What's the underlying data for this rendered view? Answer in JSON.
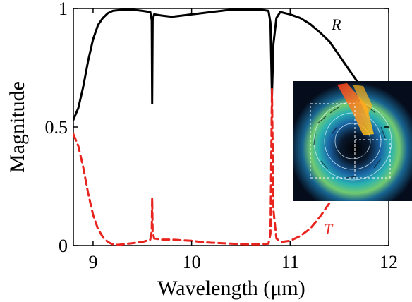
{
  "chart_data": {
    "type": "line",
    "title": "",
    "xlabel": "Wavelength (μm)",
    "ylabel": "Magnitude",
    "xlim": [
      8.8,
      12
    ],
    "ylim": [
      0,
      1
    ],
    "xticks": [
      9,
      10,
      11,
      12
    ],
    "xtick_labels": [
      "9",
      "10",
      "11",
      "12"
    ],
    "yticks": [
      0,
      0.5,
      1
    ],
    "ytick_labels": [
      "0",
      "0.5",
      "1"
    ],
    "grid": false,
    "legend": "none",
    "series": [
      {
        "name": "R",
        "color": "#000000",
        "style": "solid",
        "x": [
          8.8,
          8.85,
          8.9,
          8.95,
          9.0,
          9.05,
          9.1,
          9.15,
          9.2,
          9.3,
          9.4,
          9.5,
          9.58,
          9.595,
          9.6,
          9.605,
          9.62,
          9.7,
          9.8,
          9.9,
          10.0,
          10.1,
          10.2,
          10.3,
          10.4,
          10.5,
          10.6,
          10.7,
          10.78,
          10.8,
          10.815,
          10.83,
          10.86,
          10.9,
          11.0,
          11.1,
          11.2,
          11.3,
          11.4,
          11.5,
          11.6,
          11.7
        ],
        "y": [
          0.53,
          0.58,
          0.67,
          0.78,
          0.87,
          0.93,
          0.96,
          0.98,
          0.99,
          0.995,
          0.995,
          0.99,
          0.985,
          0.95,
          0.6,
          0.95,
          0.975,
          0.97,
          0.965,
          0.97,
          0.975,
          0.98,
          0.985,
          0.99,
          0.995,
          0.995,
          0.995,
          0.995,
          0.99,
          0.94,
          0.63,
          0.85,
          0.96,
          0.985,
          0.975,
          0.96,
          0.935,
          0.9,
          0.86,
          0.8,
          0.74,
          0.68
        ]
      },
      {
        "name": "T",
        "color": "#e8241f",
        "style": "dashed",
        "x": [
          8.8,
          8.85,
          8.9,
          8.95,
          9.0,
          9.05,
          9.1,
          9.15,
          9.2,
          9.25,
          9.3,
          9.4,
          9.5,
          9.58,
          9.595,
          9.6,
          9.605,
          9.62,
          9.7,
          9.8,
          9.9,
          10.0,
          10.1,
          10.2,
          10.3,
          10.4,
          10.5,
          10.6,
          10.7,
          10.78,
          10.8,
          10.815,
          10.83,
          10.86,
          10.9,
          11.0,
          11.1,
          11.2,
          11.3,
          11.4,
          11.5
        ],
        "y": [
          0.47,
          0.42,
          0.33,
          0.22,
          0.13,
          0.07,
          0.035,
          0.015,
          0.005,
          0.003,
          0.005,
          0.01,
          0.015,
          0.025,
          0.06,
          0.2,
          0.06,
          0.03,
          0.025,
          0.025,
          0.022,
          0.02,
          0.015,
          0.012,
          0.01,
          0.008,
          0.006,
          0.005,
          0.005,
          0.008,
          0.05,
          0.66,
          0.15,
          0.03,
          0.015,
          0.02,
          0.04,
          0.07,
          0.12,
          0.18,
          0.27
        ]
      }
    ],
    "annotations": [
      {
        "text": "R",
        "color": "#000000"
      },
      {
        "text": "T",
        "color": "#e8241f"
      }
    ]
  }
}
